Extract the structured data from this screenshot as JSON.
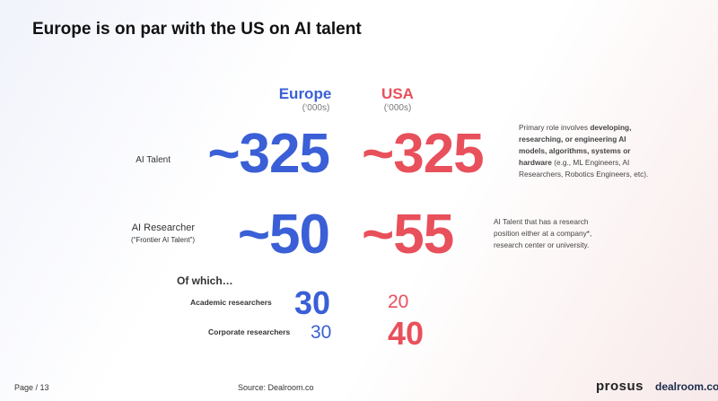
{
  "title": "Europe is on par with the US on AI talent",
  "columns": [
    {
      "name": "Europe",
      "unit": "(‘000s)"
    },
    {
      "name": "USA",
      "unit": "(‘000s)"
    }
  ],
  "rows": [
    {
      "label": "AI Talent",
      "values": [
        "~325",
        "~325"
      ],
      "note": [
        "Primary role involves ",
        "developing, researching, or engineering AI models, algorithms, systems or hardware",
        " (e.g., ML Engineers, AI Researchers, Robotics Engineers, etc)."
      ]
    },
    {
      "label": "AI Researcher",
      "sublabel": "(“Frontier AI Talent”)",
      "values": [
        "~50",
        "~55"
      ],
      "note": [
        "AI Talent that has a research position either at a company*, research center or university."
      ]
    }
  ],
  "breakdown": {
    "heading": "Of which…",
    "rows": [
      {
        "label": "Academic researchers",
        "values": [
          "30",
          "20"
        ]
      },
      {
        "label": "Corporate researchers",
        "values": [
          "30",
          "40"
        ]
      }
    ]
  },
  "footer": {
    "page": "Page / 13",
    "source": "Source:  Dealroom.co",
    "logos": [
      "prosus",
      "dealroom.co"
    ]
  }
}
